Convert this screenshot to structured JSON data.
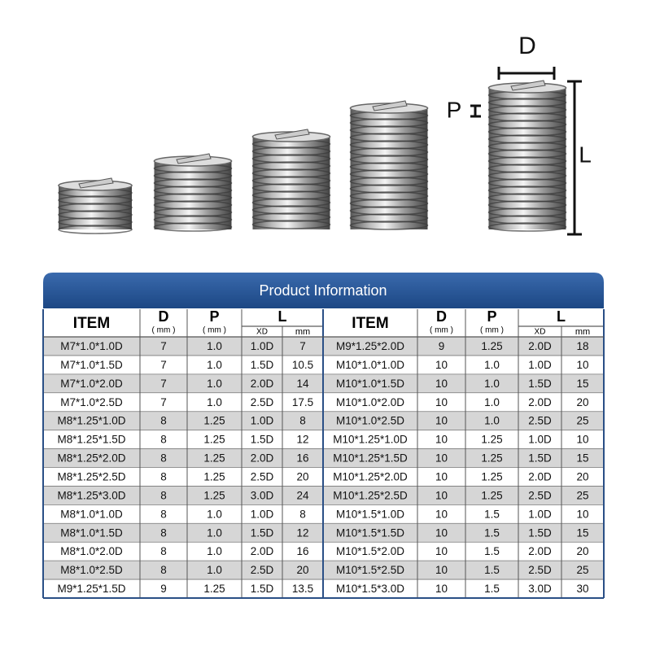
{
  "figure": {
    "d_label": "D",
    "p_label": "P",
    "l_label": "L"
  },
  "table": {
    "title": "Product Information",
    "header": {
      "item": "ITEM",
      "d": "D",
      "d_unit": "( mm )",
      "p": "P",
      "p_unit": "( mm )",
      "l": "L",
      "xd": "XD",
      "mm": "mm"
    },
    "left_rows": [
      [
        "M7*1.0*1.0D",
        "7",
        "1.0",
        "1.0D",
        "7"
      ],
      [
        "M7*1.0*1.5D",
        "7",
        "1.0",
        "1.5D",
        "10.5"
      ],
      [
        "M7*1.0*2.0D",
        "7",
        "1.0",
        "2.0D",
        "14"
      ],
      [
        "M7*1.0*2.5D",
        "7",
        "1.0",
        "2.5D",
        "17.5"
      ],
      [
        "M8*1.25*1.0D",
        "8",
        "1.25",
        "1.0D",
        "8"
      ],
      [
        "M8*1.25*1.5D",
        "8",
        "1.25",
        "1.5D",
        "12"
      ],
      [
        "M8*1.25*2.0D",
        "8",
        "1.25",
        "2.0D",
        "16"
      ],
      [
        "M8*1.25*2.5D",
        "8",
        "1.25",
        "2.5D",
        "20"
      ],
      [
        "M8*1.25*3.0D",
        "8",
        "1.25",
        "3.0D",
        "24"
      ],
      [
        "M8*1.0*1.0D",
        "8",
        "1.0",
        "1.0D",
        "8"
      ],
      [
        "M8*1.0*1.5D",
        "8",
        "1.0",
        "1.5D",
        "12"
      ],
      [
        "M8*1.0*2.0D",
        "8",
        "1.0",
        "2.0D",
        "16"
      ],
      [
        "M8*1.0*2.5D",
        "8",
        "1.0",
        "2.5D",
        "20"
      ],
      [
        "M9*1.25*1.5D",
        "9",
        "1.25",
        "1.5D",
        "13.5"
      ]
    ],
    "right_rows": [
      [
        "M9*1.25*2.0D",
        "9",
        "1.25",
        "2.0D",
        "18"
      ],
      [
        "M10*1.0*1.0D",
        "10",
        "1.0",
        "1.0D",
        "10"
      ],
      [
        "M10*1.0*1.5D",
        "10",
        "1.0",
        "1.5D",
        "15"
      ],
      [
        "M10*1.0*2.0D",
        "10",
        "1.0",
        "2.0D",
        "20"
      ],
      [
        "M10*1.0*2.5D",
        "10",
        "1.0",
        "2.5D",
        "25"
      ],
      [
        "M10*1.25*1.0D",
        "10",
        "1.25",
        "1.0D",
        "10"
      ],
      [
        "M10*1.25*1.5D",
        "10",
        "1.25",
        "1.5D",
        "15"
      ],
      [
        "M10*1.25*2.0D",
        "10",
        "1.25",
        "2.0D",
        "20"
      ],
      [
        "M10*1.25*2.5D",
        "10",
        "1.25",
        "2.5D",
        "25"
      ],
      [
        "M10*1.5*1.0D",
        "10",
        "1.5",
        "1.0D",
        "10"
      ],
      [
        "M10*1.5*1.5D",
        "10",
        "1.5",
        "1.5D",
        "15"
      ],
      [
        "M10*1.5*2.0D",
        "10",
        "1.5",
        "2.0D",
        "20"
      ],
      [
        "M10*1.5*2.5D",
        "10",
        "1.5",
        "2.5D",
        "25"
      ],
      [
        "M10*1.5*3.0D",
        "10",
        "1.5",
        "3.0D",
        "30"
      ]
    ]
  }
}
